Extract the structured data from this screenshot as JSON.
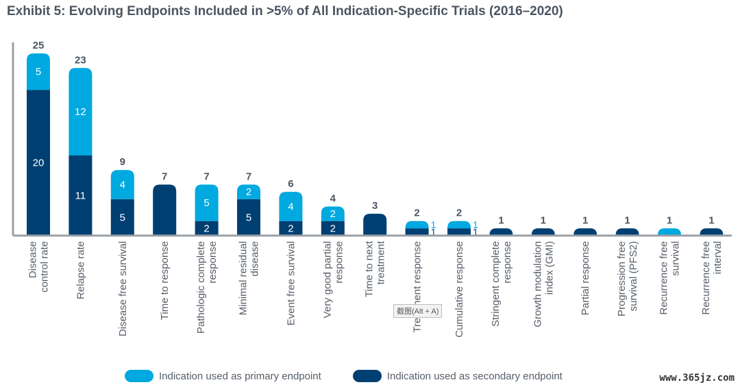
{
  "title": "Exhibit 5: Evolving Endpoints Included in >5% of All Indication-Specific Trials (2016–2020)",
  "colors": {
    "primary": "#00a9e0",
    "secondary": "#003f72",
    "axis": "#9aa0a6",
    "total_label": "#4a5560",
    "category_label": "#555e68"
  },
  "legend": {
    "primary_label": "Indication used as primary endpoint",
    "secondary_label": "Indication used as secondary endpoint"
  },
  "watermark": "www.365jz.com",
  "tooltip": "截图(Alt + A)",
  "chart_data": {
    "type": "bar",
    "stacked": true,
    "title": "Exhibit 5: Evolving Endpoints Included in >5% of All Indication-Specific Trials (2016–2020)",
    "categories": [
      [
        "Disease",
        "control rate"
      ],
      [
        "Relapse rate"
      ],
      [
        "Disease free survival"
      ],
      [
        "Time to response"
      ],
      [
        "Pathologic complete",
        "response"
      ],
      [
        "Minimal residual",
        "disease"
      ],
      [
        "Event free survival"
      ],
      [
        "Very good partial",
        "response"
      ],
      [
        "Time to next",
        "treatment"
      ],
      [
        "Treatment response"
      ],
      [
        "Cumulative response"
      ],
      [
        "Stringent complete",
        "response"
      ],
      [
        "Growth modulation",
        "index (GMI)"
      ],
      [
        "Partial response"
      ],
      [
        "Progression free",
        "survival (PFS2)"
      ],
      [
        "Recurrence free",
        "survival"
      ],
      [
        "Recurrence free",
        "interval"
      ]
    ],
    "series": [
      {
        "name": "Indication used as secondary endpoint",
        "values": [
          20,
          11,
          5,
          7,
          2,
          5,
          2,
          2,
          3,
          1,
          1,
          1,
          1,
          1,
          1,
          0,
          1
        ]
      },
      {
        "name": "Indication used as primary endpoint",
        "values": [
          5,
          12,
          4,
          0,
          5,
          2,
          4,
          2,
          0,
          1,
          1,
          0,
          0,
          0,
          0,
          1,
          0
        ]
      }
    ],
    "totals": [
      25,
      23,
      9,
      7,
      7,
      7,
      6,
      4,
      3,
      2,
      2,
      1,
      1,
      1,
      1,
      1,
      1
    ],
    "ylim": [
      0,
      25
    ],
    "grid": false,
    "legend_position": "bottom"
  }
}
